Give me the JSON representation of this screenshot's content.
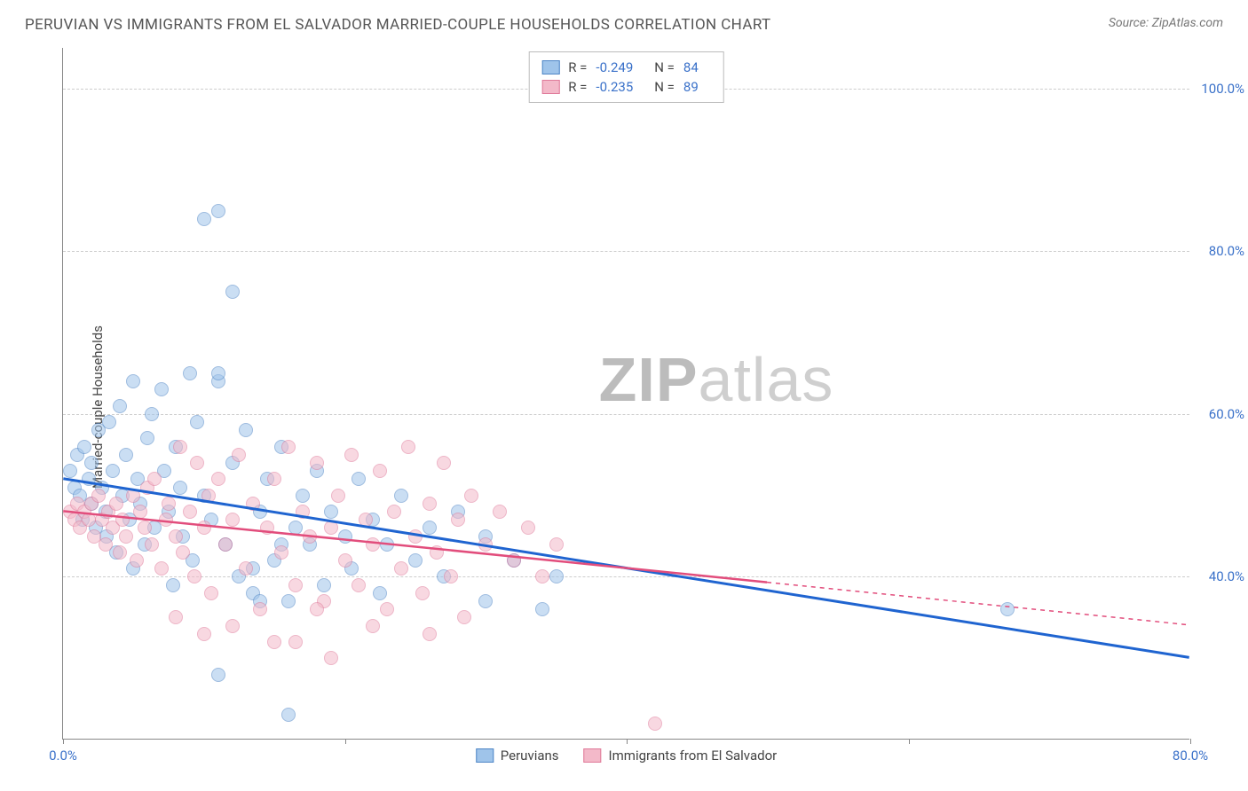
{
  "header": {
    "title": "PERUVIAN VS IMMIGRANTS FROM EL SALVADOR MARRIED-COUPLE HOUSEHOLDS CORRELATION CHART",
    "source_prefix": "Source: ",
    "source_name": "ZipAtlas.com"
  },
  "chart": {
    "type": "scatter",
    "ylabel": "Married-couple Households",
    "xlim": [
      0,
      80
    ],
    "ylim": [
      20,
      105
    ],
    "ytick_values": [
      40,
      60,
      80,
      100
    ],
    "ytick_labels": [
      "40.0%",
      "60.0%",
      "80.0%",
      "100.0%"
    ],
    "xtick_values": [
      0,
      40,
      80
    ],
    "xtick_labels": [
      "0.0%",
      "",
      "80.0%"
    ],
    "xtick_marks": [
      0,
      20,
      40,
      60,
      80
    ],
    "background_color": "#ffffff",
    "grid_color": "#cccccc",
    "axis_color": "#888888",
    "tick_label_color": "#3a71c9",
    "marker_radius": 8,
    "marker_opacity": 0.55,
    "watermark_bold": "ZIP",
    "watermark_light": "atlas"
  },
  "series": [
    {
      "name": "Peruvians",
      "color_fill": "#9fc4ea",
      "color_stroke": "#4f86c6",
      "trend_color": "#1f64d0",
      "trend_width": 3,
      "trend_start_y": 52,
      "trend_end_y": 30,
      "trend_x_extent": 80,
      "dash_after": 80,
      "R": "-0.249",
      "N": "84",
      "points": [
        [
          0.5,
          53
        ],
        [
          0.8,
          51
        ],
        [
          1.0,
          55
        ],
        [
          1.2,
          50
        ],
        [
          1.4,
          47
        ],
        [
          1.5,
          56
        ],
        [
          1.8,
          52
        ],
        [
          2.0,
          49
        ],
        [
          2.0,
          54
        ],
        [
          2.3,
          46
        ],
        [
          2.5,
          58
        ],
        [
          2.8,
          51
        ],
        [
          3.0,
          48
        ],
        [
          3.1,
          45
        ],
        [
          3.3,
          59
        ],
        [
          3.5,
          53
        ],
        [
          3.8,
          43
        ],
        [
          4.0,
          61
        ],
        [
          4.2,
          50
        ],
        [
          4.5,
          55
        ],
        [
          4.7,
          47
        ],
        [
          5.0,
          41
        ],
        [
          5.0,
          64
        ],
        [
          5.3,
          52
        ],
        [
          5.5,
          49
        ],
        [
          5.8,
          44
        ],
        [
          6.0,
          57
        ],
        [
          6.3,
          60
        ],
        [
          6.5,
          46
        ],
        [
          7.0,
          63
        ],
        [
          7.2,
          53
        ],
        [
          7.5,
          48
        ],
        [
          7.8,
          39
        ],
        [
          8.0,
          56
        ],
        [
          8.3,
          51
        ],
        [
          8.5,
          45
        ],
        [
          9.0,
          65
        ],
        [
          9.2,
          42
        ],
        [
          9.5,
          59
        ],
        [
          10.0,
          50
        ],
        [
          10.0,
          84
        ],
        [
          10.5,
          47
        ],
        [
          11.0,
          64
        ],
        [
          11.0,
          65
        ],
        [
          11.0,
          85
        ],
        [
          11.5,
          44
        ],
        [
          12.0,
          75
        ],
        [
          12.0,
          54
        ],
        [
          12.5,
          40
        ],
        [
          13.0,
          58
        ],
        [
          13.5,
          38
        ],
        [
          14.0,
          48
        ],
        [
          14.5,
          52
        ],
        [
          15.0,
          42
        ],
        [
          15.5,
          56
        ],
        [
          16.0,
          37
        ],
        [
          16.5,
          46
        ],
        [
          17.0,
          50
        ],
        [
          17.5,
          44
        ],
        [
          18.0,
          53
        ],
        [
          18.5,
          39
        ],
        [
          19.0,
          48
        ],
        [
          11.0,
          28
        ],
        [
          20.0,
          45
        ],
        [
          20.5,
          41
        ],
        [
          21.0,
          52
        ],
        [
          16.0,
          23
        ],
        [
          22.0,
          47
        ],
        [
          22.5,
          38
        ],
        [
          23.0,
          44
        ],
        [
          24.0,
          50
        ],
        [
          25.0,
          42
        ],
        [
          26.0,
          46
        ],
        [
          27.0,
          40
        ],
        [
          28.0,
          48
        ],
        [
          13.5,
          41
        ],
        [
          30.0,
          45
        ],
        [
          14.0,
          37
        ],
        [
          32.0,
          42
        ],
        [
          15.5,
          44
        ],
        [
          34.0,
          36
        ],
        [
          35.0,
          40
        ],
        [
          30.0,
          37
        ],
        [
          67.0,
          36
        ]
      ]
    },
    {
      "name": "Immigrants from El Salvador",
      "color_fill": "#f3b9c9",
      "color_stroke": "#e07a9a",
      "trend_color": "#e24d7c",
      "trend_width": 2.5,
      "trend_start_y": 48,
      "trend_end_y": 34,
      "trend_x_extent": 50,
      "dash_after": 50,
      "R": "-0.235",
      "N": "89",
      "points": [
        [
          0.5,
          48
        ],
        [
          0.8,
          47
        ],
        [
          1.0,
          49
        ],
        [
          1.2,
          46
        ],
        [
          1.5,
          48
        ],
        [
          1.8,
          47
        ],
        [
          2.0,
          49
        ],
        [
          2.2,
          45
        ],
        [
          2.5,
          50
        ],
        [
          2.8,
          47
        ],
        [
          3.0,
          44
        ],
        [
          3.2,
          48
        ],
        [
          3.5,
          46
        ],
        [
          3.8,
          49
        ],
        [
          4.0,
          43
        ],
        [
          4.2,
          47
        ],
        [
          4.5,
          45
        ],
        [
          5.0,
          50
        ],
        [
          5.2,
          42
        ],
        [
          5.5,
          48
        ],
        [
          5.8,
          46
        ],
        [
          6.0,
          51
        ],
        [
          6.3,
          44
        ],
        [
          6.5,
          52
        ],
        [
          7.0,
          41
        ],
        [
          7.3,
          47
        ],
        [
          7.5,
          49
        ],
        [
          8.0,
          45
        ],
        [
          8.3,
          56
        ],
        [
          8.5,
          43
        ],
        [
          9.0,
          48
        ],
        [
          9.3,
          40
        ],
        [
          9.5,
          54
        ],
        [
          10.0,
          46
        ],
        [
          10.3,
          50
        ],
        [
          10.5,
          38
        ],
        [
          11.0,
          52
        ],
        [
          11.5,
          44
        ],
        [
          12.0,
          47
        ],
        [
          12.5,
          55
        ],
        [
          13.0,
          41
        ],
        [
          13.5,
          49
        ],
        [
          14.0,
          36
        ],
        [
          14.5,
          46
        ],
        [
          15.0,
          52
        ],
        [
          15.5,
          43
        ],
        [
          16.0,
          56
        ],
        [
          16.5,
          39
        ],
        [
          17.0,
          48
        ],
        [
          17.5,
          45
        ],
        [
          18.0,
          54
        ],
        [
          18.5,
          37
        ],
        [
          19.0,
          46
        ],
        [
          19.5,
          50
        ],
        [
          20.0,
          42
        ],
        [
          20.5,
          55
        ],
        [
          21.0,
          39
        ],
        [
          21.5,
          47
        ],
        [
          22.0,
          44
        ],
        [
          22.5,
          53
        ],
        [
          23.0,
          36
        ],
        [
          23.5,
          48
        ],
        [
          24.0,
          41
        ],
        [
          24.5,
          56
        ],
        [
          25.0,
          45
        ],
        [
          25.5,
          38
        ],
        [
          26.0,
          49
        ],
        [
          26.5,
          43
        ],
        [
          27.0,
          54
        ],
        [
          27.5,
          40
        ],
        [
          28.0,
          47
        ],
        [
          28.5,
          35
        ],
        [
          29.0,
          50
        ],
        [
          12.0,
          34
        ],
        [
          30.0,
          44
        ],
        [
          15.0,
          32
        ],
        [
          31.0,
          48
        ],
        [
          19.0,
          30
        ],
        [
          32.0,
          42
        ],
        [
          16.5,
          32
        ],
        [
          33.0,
          46
        ],
        [
          8.0,
          35
        ],
        [
          34.0,
          40
        ],
        [
          10.0,
          33
        ],
        [
          35.0,
          44
        ],
        [
          42.0,
          22
        ],
        [
          18.0,
          36
        ],
        [
          22.0,
          34
        ],
        [
          26.0,
          33
        ]
      ]
    }
  ],
  "legend_top": {
    "r_label": "R =",
    "n_label": "N ="
  },
  "legend_bottom": [
    {
      "series": 0
    },
    {
      "series": 1
    }
  ]
}
